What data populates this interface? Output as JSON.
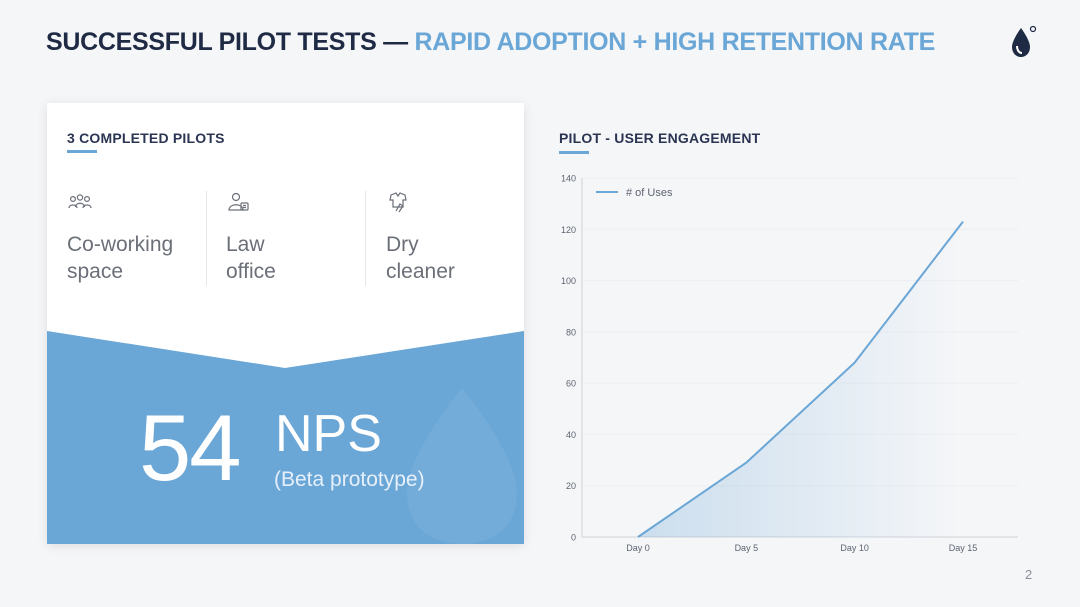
{
  "header": {
    "title_part1": "SUCCESSFUL PILOT TESTS —",
    "title_part2": "RAPID ADOPTION + HIGH RETENTION RATE",
    "logo_icon": "water-drop-icon"
  },
  "pilots_card": {
    "heading": "3 COMPLETED PILOTS",
    "items": [
      {
        "icon": "people-group-icon",
        "line1": "Co-working",
        "line2": "space"
      },
      {
        "icon": "person-badge-icon",
        "line1": "Law",
        "line2": "office"
      },
      {
        "icon": "shirt-hand-icon",
        "line1": "Dry",
        "line2": "cleaner"
      }
    ],
    "nps_value": "54",
    "nps_label": "NPS",
    "nps_sub": "(Beta prototype)",
    "accent_color": "#6aa6d6"
  },
  "chart_section": {
    "heading": "PILOT - USER ENGAGEMENT"
  },
  "chart_data": {
    "type": "area",
    "title": "PILOT - USER ENGAGEMENT",
    "categories": [
      "Day 0",
      "Day 5",
      "Day 10",
      "Day 15"
    ],
    "x": [
      0,
      5,
      10,
      15
    ],
    "series": [
      {
        "name": "# of Uses",
        "values": [
          0,
          29,
          68,
          123
        ],
        "color": "#6aa6d6"
      }
    ],
    "y_ticks": [
      0,
      20,
      40,
      60,
      80,
      100,
      120,
      140
    ],
    "ylim": [
      0,
      140
    ],
    "legend": "top-left",
    "grid": true
  },
  "footer": {
    "page_number": "2"
  }
}
